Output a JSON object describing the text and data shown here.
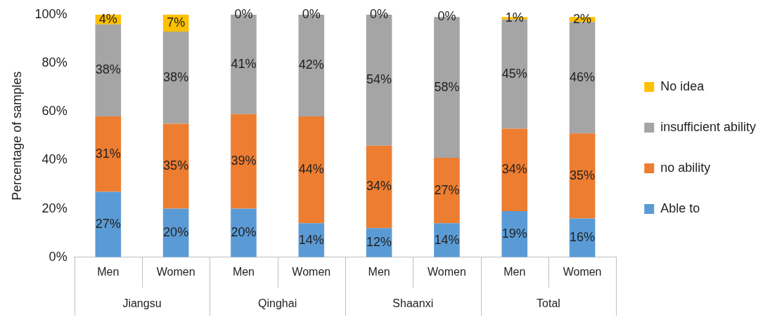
{
  "chart_data": {
    "type": "bar",
    "stacked": true,
    "ylabel": "Percentage of samples",
    "categories": [
      "Men",
      "Women",
      "Men",
      "Women",
      "Men",
      "Women",
      "Men",
      "Women"
    ],
    "annotations": [
      "Jiangsu",
      "Qinghai",
      "Shaanxi",
      "Total"
    ],
    "series": [
      {
        "name": "Able to",
        "color": "#5b9bd5",
        "values": [
          27,
          20,
          20,
          14,
          12,
          14,
          19,
          16
        ],
        "value_labels": [
          "27%",
          "20%",
          "20%",
          "14%",
          "12%",
          "14%",
          "19%",
          "16%"
        ]
      },
      {
        "name": "no ability",
        "color": "#ed7d31",
        "values": [
          31,
          35,
          39,
          44,
          34,
          27,
          34,
          35
        ],
        "value_labels": [
          "31%",
          "35%",
          "39%",
          "44%",
          "34%",
          "27%",
          "34%",
          "35%"
        ]
      },
      {
        "name": "insufficient ability",
        "color": "#a5a5a5",
        "values": [
          38,
          38,
          41,
          42,
          54,
          58,
          45,
          46
        ],
        "value_labels": [
          "38%",
          "38%",
          "41%",
          "42%",
          "54%",
          "58%",
          "45%",
          "46%"
        ]
      },
      {
        "name": "No idea",
        "color": "#ffc000",
        "values": [
          4,
          7,
          0,
          0,
          0,
          0,
          1,
          2
        ],
        "value_labels": [
          "4%",
          "7%",
          "0%",
          "0%",
          "0%",
          "0%",
          "1%",
          "2%"
        ]
      }
    ],
    "ylim": [
      0,
      100
    ],
    "yticks": [
      {
        "value": 0,
        "label": "0%"
      },
      {
        "value": 20,
        "label": "20%"
      },
      {
        "value": 40,
        "label": "40%"
      },
      {
        "value": 60,
        "label": "60%"
      },
      {
        "value": 80,
        "label": "80%"
      },
      {
        "value": 100,
        "label": "100%"
      }
    ],
    "grid": false,
    "legend": "right"
  }
}
